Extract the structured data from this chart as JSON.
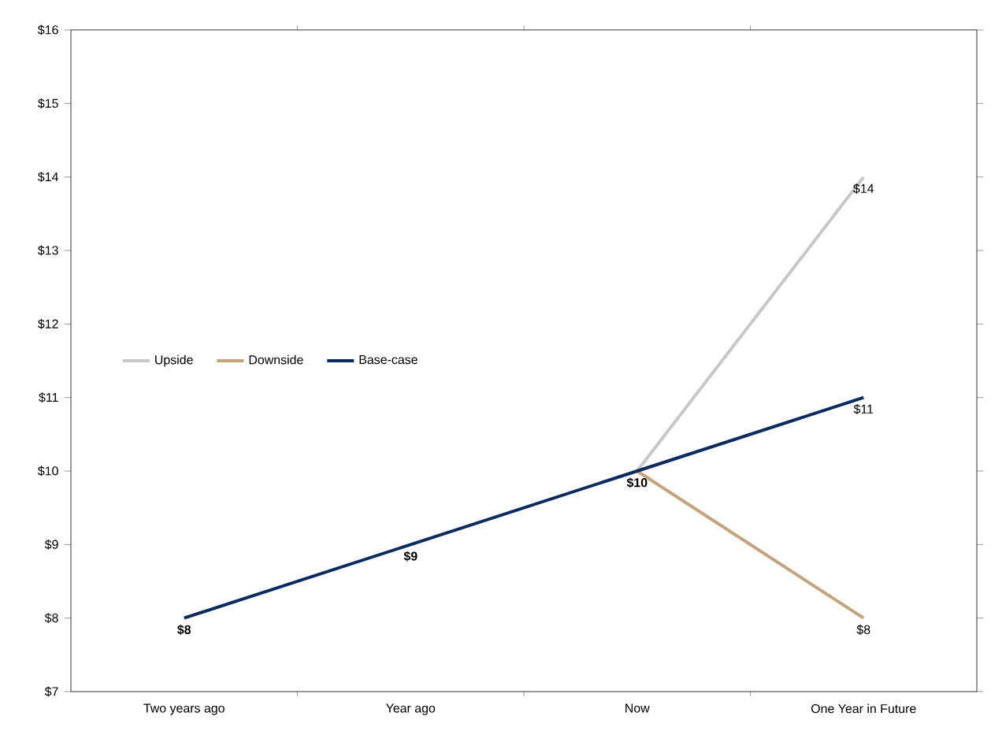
{
  "chart_data": {
    "type": "line",
    "categories": [
      "Two years ago",
      "Year ago",
      "Now",
      "One Year in Future"
    ],
    "series": [
      {
        "name": "Upside",
        "color": "#c8c8c8",
        "values": [
          null,
          null,
          10,
          14
        ],
        "value_labels": [
          null,
          null,
          null,
          "$14"
        ]
      },
      {
        "name": "Downside",
        "color": "#c4a47c",
        "values": [
          null,
          null,
          10,
          8
        ],
        "value_labels": [
          null,
          null,
          null,
          "$8"
        ]
      },
      {
        "name": "Base-case",
        "color": "#0b2a5e",
        "values": [
          8,
          9,
          10,
          11
        ],
        "value_labels": [
          "**$8**",
          "**$9**",
          "**$10**",
          "$11"
        ]
      }
    ],
    "ylim": [
      7,
      16
    ],
    "yticks": [
      {
        "value": 7,
        "label": "$7"
      },
      {
        "value": 8,
        "label": "$8"
      },
      {
        "value": 9,
        "label": "$9"
      },
      {
        "value": 10,
        "label": "$10"
      },
      {
        "value": 11,
        "label": "$11"
      },
      {
        "value": 12,
        "label": "$12"
      },
      {
        "value": 13,
        "label": "$13"
      },
      {
        "value": 14,
        "label": "$14"
      },
      {
        "value": 15,
        "label": "$15"
      },
      {
        "value": 16,
        "label": "$16"
      }
    ],
    "legend": "left",
    "grid": false,
    "marker": "none",
    "line_style": "solid"
  }
}
